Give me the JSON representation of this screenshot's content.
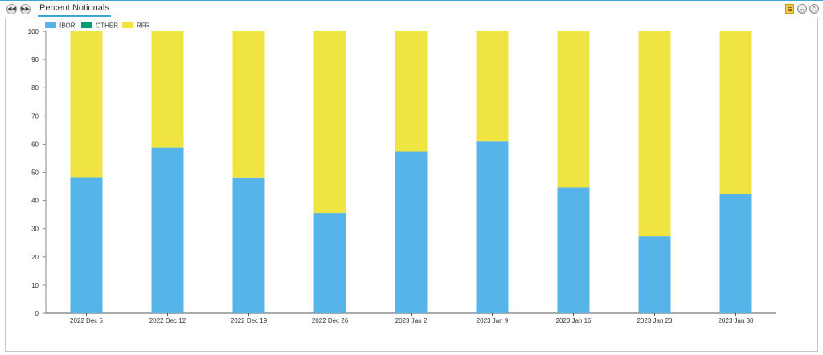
{
  "header": {
    "tab_label": "Percent Notionals",
    "prev_icon": "rewind-icon",
    "next_icon": "fast-forward-icon"
  },
  "toolbar": {
    "icons": [
      "notes-icon",
      "collapse-icon",
      "expand-icon"
    ]
  },
  "legend": {
    "items": [
      {
        "label": "IBOR",
        "color": "#56b4e9"
      },
      {
        "label": "OTHER",
        "color": "#009e73"
      },
      {
        "label": "RFR",
        "color": "#f0e442"
      }
    ]
  },
  "chart_data": {
    "type": "bar",
    "stacked": true,
    "categories": [
      "2022 Dec 5",
      "2022 Dec 12",
      "2022 Dec 19",
      "2022 Dec 26",
      "2023 Jan 2",
      "2023 Jan 9",
      "2023 Jan 16",
      "2023 Jan 23",
      "2023 Jan 30"
    ],
    "series": [
      {
        "name": "IBOR",
        "color": "#56b4e9",
        "values": [
          48.3,
          58.8,
          48.2,
          35.6,
          57.4,
          60.9,
          44.6,
          27.3,
          42.3
        ]
      },
      {
        "name": "OTHER",
        "color": "#009e73",
        "values": [
          0,
          0,
          0,
          0,
          0,
          0,
          0,
          0,
          0
        ]
      },
      {
        "name": "RFR",
        "color": "#f0e442",
        "values": [
          51.7,
          41.2,
          51.8,
          64.4,
          42.6,
          39.1,
          55.4,
          72.7,
          57.7
        ]
      }
    ],
    "ylim": [
      0,
      100
    ],
    "yticks": [
      "0",
      "10",
      "20",
      "30",
      "40",
      "50",
      "60",
      "70",
      "80",
      "90",
      "100"
    ],
    "title": "",
    "xlabel": "",
    "ylabel": "",
    "grid": false,
    "legend_position": "top-left"
  }
}
